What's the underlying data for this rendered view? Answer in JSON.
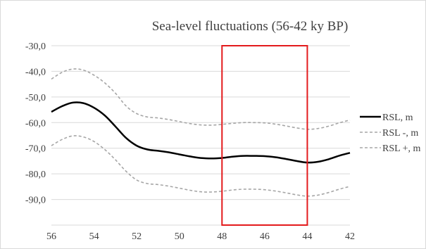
{
  "chart_data": {
    "type": "line",
    "title": "Sea-level fluctuations (56-42 ky BP)",
    "xlabel": "",
    "ylabel": "",
    "xlim": [
      56,
      42
    ],
    "ylim": [
      -100,
      -30
    ],
    "x_ticks": [
      "56",
      "54",
      "52",
      "50",
      "48",
      "46",
      "44",
      "42"
    ],
    "y_ticks": [
      "-30,0",
      "-40,0",
      "-50,0",
      "-60,0",
      "-70,0",
      "-80,0",
      "-90,0"
    ],
    "grid": true,
    "legend_position": "right",
    "series": [
      {
        "name": "RSL, m",
        "style": "solid",
        "color": "#000000",
        "x": [
          56,
          55.5,
          55,
          54.5,
          54,
          53.5,
          53,
          52.5,
          52,
          51.5,
          51,
          50.5,
          50,
          49.5,
          49,
          48.5,
          48,
          47.5,
          47,
          46.5,
          46,
          45.5,
          45,
          44.5,
          44,
          43.5,
          43,
          42.5,
          42
        ],
        "values": [
          -55.8,
          -53.6,
          -52.2,
          -52.4,
          -54.2,
          -57.2,
          -61.5,
          -66.0,
          -69.0,
          -70.5,
          -71.0,
          -71.6,
          -72.4,
          -73.2,
          -73.8,
          -74.0,
          -73.8,
          -73.3,
          -73.0,
          -73.0,
          -73.1,
          -73.5,
          -74.2,
          -75.0,
          -75.6,
          -75.3,
          -74.3,
          -72.9,
          -71.8
        ]
      },
      {
        "name": "RSL -, m",
        "style": "dashed",
        "color": "#a6a6a6",
        "x": [
          56,
          55.5,
          55,
          54.5,
          54,
          53.5,
          53,
          52.5,
          52,
          51.5,
          51,
          50.5,
          50,
          49.5,
          49,
          48.5,
          48,
          47.5,
          47,
          46.5,
          46,
          45.5,
          45,
          44.5,
          44,
          43.5,
          43,
          42.5,
          42
        ],
        "values": [
          -43.0,
          -40.4,
          -39.1,
          -39.5,
          -41.5,
          -44.5,
          -48.5,
          -53.5,
          -56.5,
          -57.8,
          -58.2,
          -58.8,
          -59.6,
          -60.4,
          -60.9,
          -61.0,
          -60.7,
          -60.3,
          -60.0,
          -60.0,
          -60.1,
          -60.6,
          -61.3,
          -62.1,
          -62.6,
          -62.3,
          -61.4,
          -60.1,
          -59.0
        ]
      },
      {
        "name": "RSL +, m",
        "style": "dashed",
        "color": "#a6a6a6",
        "x": [
          56,
          55.5,
          55,
          54.5,
          54,
          53.5,
          53,
          52.5,
          52,
          51.5,
          51,
          50.5,
          50,
          49.5,
          49,
          48.5,
          48,
          47.5,
          47,
          46.5,
          46,
          45.5,
          45,
          44.5,
          44,
          43.5,
          43,
          42.5,
          42
        ],
        "values": [
          -69.0,
          -66.6,
          -65.2,
          -65.6,
          -67.4,
          -70.5,
          -74.5,
          -79.0,
          -82.4,
          -83.8,
          -84.2,
          -84.8,
          -85.6,
          -86.4,
          -87.0,
          -87.1,
          -86.8,
          -86.3,
          -86.0,
          -86.0,
          -86.2,
          -86.7,
          -87.4,
          -88.2,
          -88.7,
          -88.3,
          -87.3,
          -86.0,
          -84.9
        ]
      }
    ],
    "highlight_box": {
      "x_range": [
        48,
        44
      ],
      "y_range": [
        -100,
        -30
      ],
      "color": "#e31a1c"
    }
  }
}
